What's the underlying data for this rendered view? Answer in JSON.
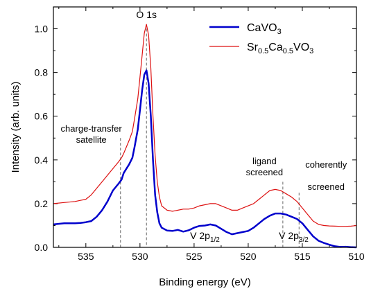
{
  "chart_data": {
    "type": "line",
    "xlabel": "Binding energy (eV)",
    "ylabel": "Intensity (arb. units)",
    "xlim": [
      538,
      510
    ],
    "ylim": [
      0,
      1.1
    ],
    "x_reversed": true,
    "x_ticks": [
      535,
      530,
      525,
      520,
      515,
      510
    ],
    "y_ticks": [
      0.0,
      0.2,
      0.4,
      0.6,
      0.8,
      1.0
    ],
    "x_tick_labels": [
      "535",
      "530",
      "525",
      "520",
      "515",
      "510"
    ],
    "y_tick_labels": [
      "0.0",
      "0.2",
      "0.4",
      "0.6",
      "0.8",
      "1.0"
    ],
    "legend_position": "top-right",
    "series": [
      {
        "name_main": "CaVO",
        "name_sub": "3",
        "color": "#0000cc",
        "x": [
          538,
          537,
          536,
          535.5,
          535,
          534.5,
          534,
          533.5,
          533,
          532.5,
          532,
          531.7,
          531.5,
          531,
          530.7,
          530.5,
          530.2,
          530,
          529.8,
          529.6,
          529.4,
          529.2,
          529,
          528.8,
          528.6,
          528.4,
          528.2,
          528,
          527.5,
          527,
          526.5,
          526,
          525.5,
          525,
          524.5,
          524,
          523.5,
          523,
          522.5,
          522,
          521.5,
          521,
          520.5,
          520,
          519.5,
          519,
          518.5,
          518,
          517.5,
          517,
          516.5,
          516,
          515.5,
          515,
          514.5,
          514,
          513.5,
          513,
          512.5,
          512,
          511.5,
          511,
          510.5,
          510
        ],
        "y": [
          0.105,
          0.11,
          0.11,
          0.112,
          0.115,
          0.12,
          0.14,
          0.17,
          0.21,
          0.26,
          0.29,
          0.31,
          0.34,
          0.38,
          0.41,
          0.46,
          0.54,
          0.63,
          0.72,
          0.79,
          0.81,
          0.75,
          0.6,
          0.4,
          0.24,
          0.16,
          0.11,
          0.09,
          0.077,
          0.075,
          0.08,
          0.072,
          0.078,
          0.09,
          0.098,
          0.1,
          0.105,
          0.1,
          0.085,
          0.07,
          0.06,
          0.065,
          0.07,
          0.075,
          0.09,
          0.11,
          0.13,
          0.145,
          0.155,
          0.155,
          0.15,
          0.14,
          0.13,
          0.11,
          0.08,
          0.05,
          0.03,
          0.02,
          0.012,
          0.005,
          0.002,
          0.003,
          0.001,
          0.0
        ]
      },
      {
        "name_main": "Sr",
        "name_sub1": "0.5",
        "name_mid": "Ca",
        "name_sub2": "0.5",
        "name_end": "VO",
        "name_sub3": "3",
        "color": "#dd1111",
        "x": [
          538,
          537,
          536,
          535.5,
          535,
          534.5,
          534,
          533.5,
          533,
          532.5,
          532,
          531.7,
          531.5,
          531,
          530.7,
          530.5,
          530.2,
          530,
          529.8,
          529.6,
          529.4,
          529.2,
          529,
          528.8,
          528.6,
          528.4,
          528.2,
          528,
          527.5,
          527,
          526.5,
          526,
          525.5,
          525,
          524.5,
          524,
          523.5,
          523,
          522.5,
          522,
          521.5,
          521,
          520.5,
          520,
          519.5,
          519,
          518.5,
          518,
          517.5,
          517,
          516.5,
          516,
          515.5,
          515,
          514.5,
          514,
          513.5,
          513,
          512.5,
          512,
          511.5,
          511,
          510.5,
          510
        ],
        "y": [
          0.2,
          0.205,
          0.21,
          0.215,
          0.22,
          0.24,
          0.27,
          0.3,
          0.33,
          0.36,
          0.39,
          0.41,
          0.43,
          0.49,
          0.53,
          0.59,
          0.68,
          0.78,
          0.88,
          0.98,
          1.02,
          0.97,
          0.82,
          0.6,
          0.42,
          0.3,
          0.23,
          0.19,
          0.17,
          0.165,
          0.17,
          0.175,
          0.175,
          0.18,
          0.19,
          0.195,
          0.2,
          0.2,
          0.19,
          0.18,
          0.17,
          0.17,
          0.18,
          0.19,
          0.2,
          0.22,
          0.24,
          0.26,
          0.265,
          0.26,
          0.245,
          0.23,
          0.21,
          0.18,
          0.15,
          0.12,
          0.105,
          0.1,
          0.098,
          0.097,
          0.096,
          0.096,
          0.097,
          0.1
        ]
      }
    ],
    "annotations": {
      "o1s": "O 1s",
      "ct_line1": "charge-transfer",
      "ct_line2": "satellite",
      "lig_line1": "ligand",
      "lig_line2": "screened",
      "coh_line1": "coherently",
      "coh_line2": "screened",
      "v2p12_main": "V 2p",
      "v2p12_sub": "1/2",
      "v2p32_main": "V 2p",
      "v2p32_sub": "3/2"
    },
    "dashed_markers_x": [
      531.8,
      529.4,
      516.8,
      515.3
    ]
  }
}
